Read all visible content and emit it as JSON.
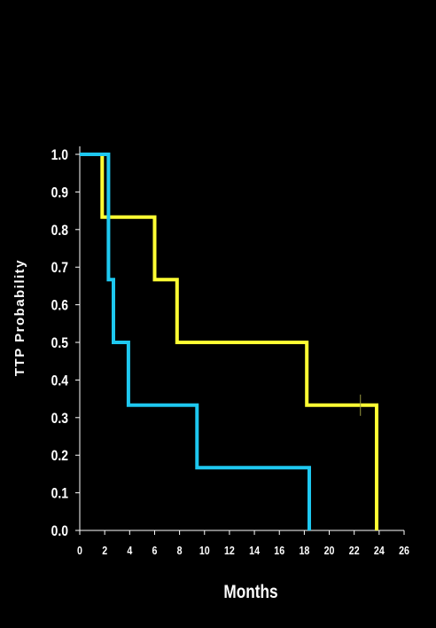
{
  "chart_data": {
    "type": "line",
    "step": true,
    "xlabel": "Months",
    "ylabel": "TTP Probability",
    "xlim": [
      0,
      26
    ],
    "ylim": [
      0,
      1
    ],
    "x_ticks": [
      "0",
      "2",
      "4",
      "6",
      "8",
      "10",
      "12",
      "14",
      "16",
      "18",
      "20",
      "22",
      "24",
      "26"
    ],
    "y_ticks": [
      "0.0",
      "0.1",
      "0.2",
      "0.3",
      "0.4",
      "0.5",
      "0.6",
      "0.7",
      "0.8",
      "0.9",
      "1.0"
    ],
    "grid": false,
    "background": "#000000",
    "axis_color": "#ffffff",
    "series": [
      {
        "color": "#ffff33",
        "points": [
          [
            0,
            1.0
          ],
          [
            1.8,
            1.0
          ],
          [
            1.8,
            0.833
          ],
          [
            6.0,
            0.833
          ],
          [
            6.0,
            0.667
          ],
          [
            7.8,
            0.667
          ],
          [
            7.8,
            0.5
          ],
          [
            18.2,
            0.5
          ],
          [
            18.2,
            0.333
          ],
          [
            23.8,
            0.333
          ],
          [
            23.8,
            0.0
          ]
        ],
        "censored": [
          [
            22.5,
            0.333
          ]
        ]
      },
      {
        "color": "#1ec8f0",
        "points": [
          [
            0,
            1.0
          ],
          [
            2.3,
            1.0
          ],
          [
            2.3,
            0.667
          ],
          [
            2.7,
            0.667
          ],
          [
            2.7,
            0.5
          ],
          [
            3.9,
            0.5
          ],
          [
            3.9,
            0.333
          ],
          [
            9.4,
            0.333
          ],
          [
            9.4,
            0.167
          ],
          [
            18.4,
            0.167
          ],
          [
            18.4,
            0.0
          ]
        ],
        "censored": []
      }
    ]
  }
}
